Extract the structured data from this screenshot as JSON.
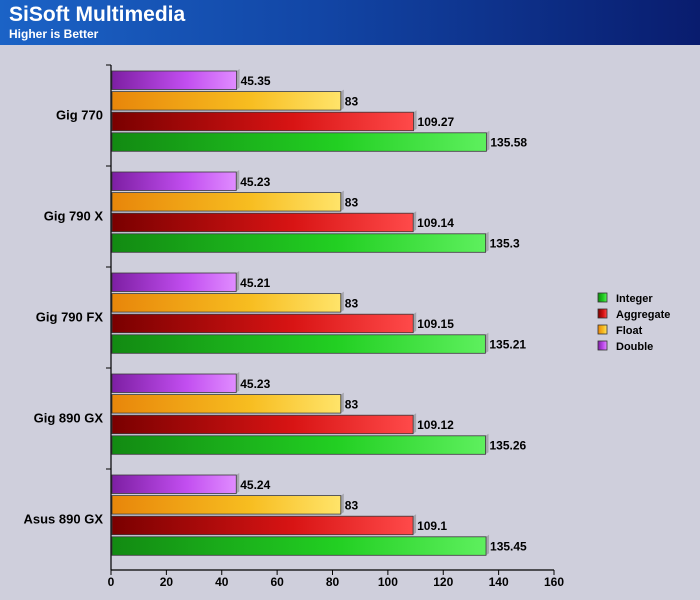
{
  "chart_data": {
    "type": "bar",
    "orientation": "horizontal",
    "title": "SiSoft Multimedia",
    "subtitle": "Higher is Better",
    "categories": [
      "Gig 770",
      "Gig 790 X",
      "Gig 790 FX",
      "Gig 890 GX",
      "Asus 890 GX"
    ],
    "series": [
      {
        "name": "Double",
        "values": [
          45.35,
          45.23,
          45.21,
          45.23,
          45.24
        ]
      },
      {
        "name": "Float",
        "values": [
          83,
          83,
          83,
          83,
          83
        ]
      },
      {
        "name": "Aggregate",
        "values": [
          109.27,
          109.14,
          109.15,
          109.12,
          109.1
        ]
      },
      {
        "name": "Integer",
        "values": [
          135.58,
          135.3,
          135.21,
          135.26,
          135.45
        ]
      }
    ],
    "value_labels": [
      [
        "45.35",
        "45.23",
        "45.21",
        "45.23",
        "45.24"
      ],
      [
        "83",
        "83",
        "83",
        "83",
        "83"
      ],
      [
        "109.27",
        "109.14",
        "109.15",
        "109.12",
        "109.1"
      ],
      [
        "135.58",
        "135.3",
        "135.21",
        "135.26",
        "135.45"
      ]
    ],
    "xlim": [
      0,
      160
    ],
    "x_ticks": [
      0,
      20,
      40,
      60,
      80,
      100,
      120,
      140,
      160
    ],
    "legend": {
      "placement": "right",
      "order": [
        "Integer",
        "Aggregate",
        "Float",
        "Double"
      ]
    },
    "grid": false,
    "colors": {
      "Double": "#b53fe0",
      "Float": "#f5b81c",
      "Aggregate": "#d81414",
      "Integer": "#1fcf1f"
    }
  }
}
